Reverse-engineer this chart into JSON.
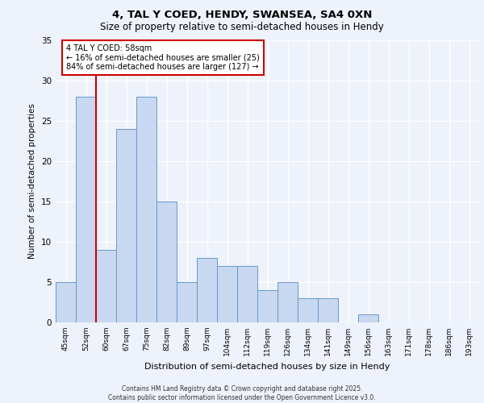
{
  "title_line1": "4, TAL Y COED, HENDY, SWANSEA, SA4 0XN",
  "title_line2": "Size of property relative to semi-detached houses in Hendy",
  "xlabel": "Distribution of semi-detached houses by size in Hendy",
  "ylabel": "Number of semi-detached properties",
  "categories": [
    "45sqm",
    "52sqm",
    "60sqm",
    "67sqm",
    "75sqm",
    "82sqm",
    "89sqm",
    "97sqm",
    "104sqm",
    "112sqm",
    "119sqm",
    "126sqm",
    "134sqm",
    "141sqm",
    "149sqm",
    "156sqm",
    "163sqm",
    "171sqm",
    "178sqm",
    "186sqm",
    "193sqm"
  ],
  "values": [
    5,
    28,
    9,
    24,
    28,
    15,
    5,
    8,
    7,
    7,
    4,
    5,
    3,
    3,
    0,
    1,
    0,
    0,
    0,
    0,
    0
  ],
  "bar_color": "#c8d8f0",
  "bar_edge_color": "#6699cc",
  "background_color": "#eef2fb",
  "grid_color": "#ffffff",
  "vline_x": 1.5,
  "vline_color": "#cc0000",
  "annotation_text": "4 TAL Y COED: 58sqm\n← 16% of semi-detached houses are smaller (25)\n84% of semi-detached houses are larger (127) →",
  "annotation_box_color": "#cc0000",
  "ylim": [
    0,
    35
  ],
  "yticks": [
    0,
    5,
    10,
    15,
    20,
    25,
    30,
    35
  ],
  "footer_line1": "Contains HM Land Registry data © Crown copyright and database right 2025.",
  "footer_line2": "Contains public sector information licensed under the Open Government Licence v3.0."
}
